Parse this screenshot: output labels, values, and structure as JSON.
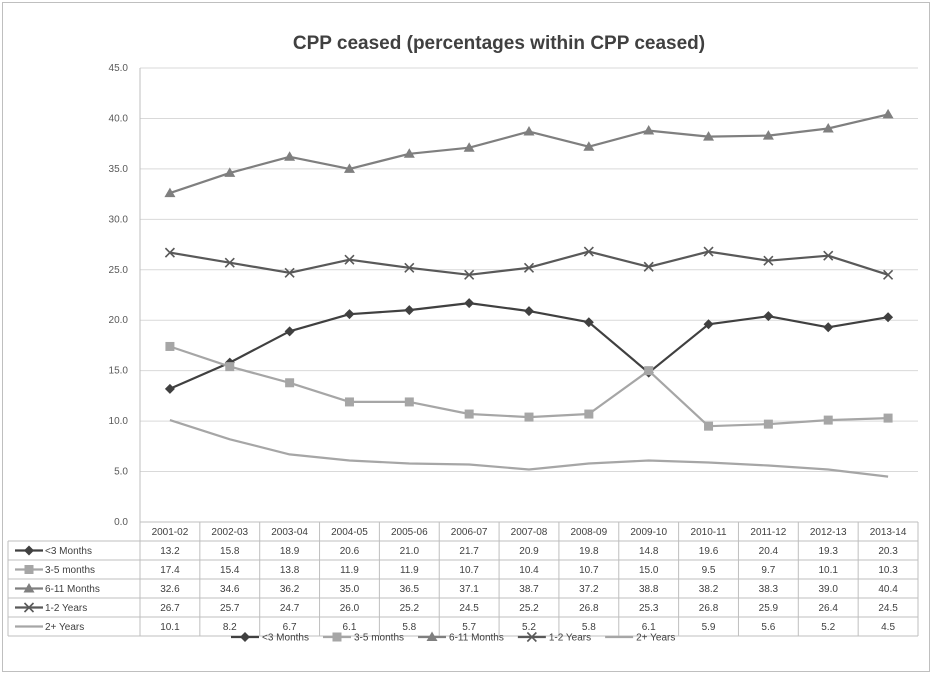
{
  "chart_data": {
    "type": "line",
    "title": "CPP ceased (percentages within CPP ceased)",
    "categories": [
      "2001-02",
      "2002-03",
      "2003-04",
      "2004-05",
      "2005-06",
      "2006-07",
      "2007-08",
      "2008-09",
      "2009-10",
      "2010-11",
      "2011-12",
      "2012-13",
      "2013-14"
    ],
    "ylim": [
      0,
      45
    ],
    "yticks": [
      "0.0",
      "5.0",
      "10.0",
      "15.0",
      "20.0",
      "25.0",
      "30.0",
      "35.0",
      "40.0",
      "45.0"
    ],
    "grid": true,
    "legend_position": "bottom",
    "series": [
      {
        "name": "<3 Months",
        "marker": "diamond",
        "color": "#404040",
        "values": [
          13.2,
          15.8,
          18.9,
          20.6,
          21.0,
          21.7,
          20.9,
          19.8,
          14.8,
          19.6,
          20.4,
          19.3,
          20.3
        ]
      },
      {
        "name": "3-5 months",
        "marker": "square",
        "color": "#a6a6a6",
        "values": [
          17.4,
          15.4,
          13.8,
          11.9,
          11.9,
          10.7,
          10.4,
          10.7,
          15.0,
          9.5,
          9.7,
          10.1,
          10.3
        ]
      },
      {
        "name": "6-11 Months",
        "marker": "triangle",
        "color": "#7f7f7f",
        "values": [
          32.6,
          34.6,
          36.2,
          35.0,
          36.5,
          37.1,
          38.7,
          37.2,
          38.8,
          38.2,
          38.3,
          39.0,
          40.4
        ]
      },
      {
        "name": "1-2 Years",
        "marker": "x",
        "color": "#595959",
        "values": [
          26.7,
          25.7,
          24.7,
          26.0,
          25.2,
          24.5,
          25.2,
          26.8,
          25.3,
          26.8,
          25.9,
          26.4,
          24.5
        ]
      },
      {
        "name": "2+ Years",
        "marker": "none",
        "color": "#a6a6a6",
        "values": [
          10.1,
          8.2,
          6.7,
          6.1,
          5.8,
          5.7,
          5.2,
          5.8,
          6.1,
          5.9,
          5.6,
          5.2,
          4.5
        ]
      }
    ]
  }
}
